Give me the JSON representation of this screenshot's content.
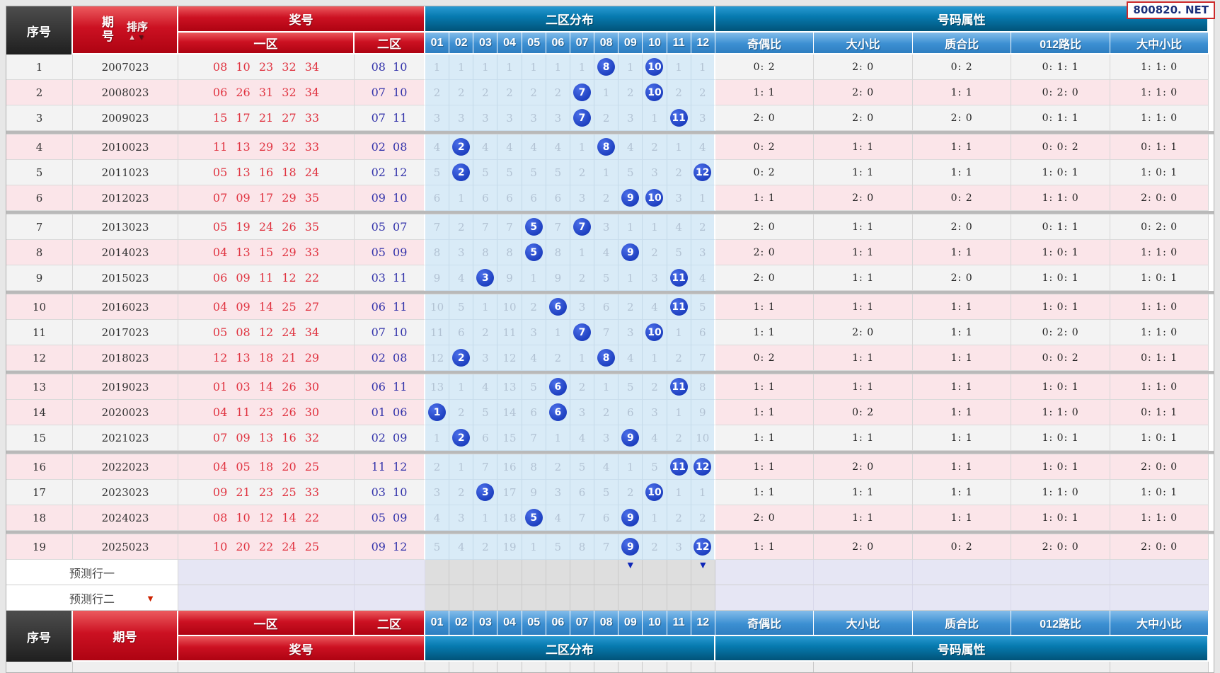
{
  "badge": "800820. NET",
  "colors": {
    "accent_red": "#cc1122",
    "header_dark": "#2b2b2b",
    "big_blue": "#077bb0",
    "column_blue": "#3c8fd2",
    "ball_blue": "#0c2db0",
    "zone1_text": "#e03340",
    "zone2_text": "#3232aa",
    "row_light": "#f3f3f3",
    "row_pink": "#fbe5e9",
    "dist_bg": "#d9ebf7",
    "prediction_lavender": "#e6e6f4"
  },
  "header": {
    "serial": "序号",
    "period_char1": "期",
    "period_char2": "号",
    "period": "期号",
    "sort_label": "排序",
    "sort_up": "▲",
    "sort_down": "▼",
    "prize": "奖号",
    "zone1": "一区",
    "zone2": "二区",
    "dist_title": "二区分布",
    "attr_title": "号码属性",
    "columns": [
      "01",
      "02",
      "03",
      "04",
      "05",
      "06",
      "07",
      "08",
      "09",
      "10",
      "11",
      "12"
    ],
    "attr_columns": [
      "奇偶比",
      "大小比",
      "质合比",
      "012路比",
      "大中小比"
    ]
  },
  "separator_after": [
    3,
    6,
    9,
    12,
    15,
    18
  ],
  "rows": [
    {
      "no": "1",
      "period": "2007023",
      "zone1": "08 10 23 32 34",
      "zone2": "08 10",
      "bg": "light",
      "dist": [
        "1",
        "1",
        "1",
        "1",
        "1",
        "1",
        "1",
        "8",
        "1",
        "10",
        "1",
        "1"
      ],
      "hits": [
        8,
        10
      ],
      "attrs": [
        "0: 2",
        "2: 0",
        "0: 2",
        "0: 1: 1",
        "1: 1: 0"
      ]
    },
    {
      "no": "2",
      "period": "2008023",
      "zone1": "06 26 31 32 34",
      "zone2": "07 10",
      "bg": "pink",
      "dist": [
        "2",
        "2",
        "2",
        "2",
        "2",
        "2",
        "7",
        "1",
        "2",
        "10",
        "2",
        "2"
      ],
      "hits": [
        7,
        10
      ],
      "attrs": [
        "1: 1",
        "2: 0",
        "1: 1",
        "0: 2: 0",
        "1: 1: 0"
      ]
    },
    {
      "no": "3",
      "period": "2009023",
      "zone1": "15 17 21 27 33",
      "zone2": "07 11",
      "bg": "light",
      "dist": [
        "3",
        "3",
        "3",
        "3",
        "3",
        "3",
        "7",
        "2",
        "3",
        "1",
        "11",
        "3"
      ],
      "hits": [
        7,
        11
      ],
      "attrs": [
        "2: 0",
        "2: 0",
        "2: 0",
        "0: 1: 1",
        "1: 1: 0"
      ]
    },
    {
      "no": "4",
      "period": "2010023",
      "zone1": "11 13 29 32 33",
      "zone2": "02 08",
      "bg": "pink",
      "dist": [
        "4",
        "2",
        "4",
        "4",
        "4",
        "4",
        "1",
        "8",
        "4",
        "2",
        "1",
        "4"
      ],
      "hits": [
        2,
        8
      ],
      "attrs": [
        "0: 2",
        "1: 1",
        "1: 1",
        "0: 0: 2",
        "0: 1: 1"
      ]
    },
    {
      "no": "5",
      "period": "2011023",
      "zone1": "05 13 16 18 24",
      "zone2": "02 12",
      "bg": "light",
      "dist": [
        "5",
        "2",
        "5",
        "5",
        "5",
        "5",
        "2",
        "1",
        "5",
        "3",
        "2",
        "12"
      ],
      "hits": [
        2,
        12
      ],
      "attrs": [
        "0: 2",
        "1: 1",
        "1: 1",
        "1: 0: 1",
        "1: 0: 1"
      ]
    },
    {
      "no": "6",
      "period": "2012023",
      "zone1": "07 09 17 29 35",
      "zone2": "09 10",
      "bg": "pink",
      "dist": [
        "6",
        "1",
        "6",
        "6",
        "6",
        "6",
        "3",
        "2",
        "9",
        "10",
        "3",
        "1"
      ],
      "hits": [
        9,
        10
      ],
      "attrs": [
        "1: 1",
        "2: 0",
        "0: 2",
        "1: 1: 0",
        "2: 0: 0"
      ]
    },
    {
      "no": "7",
      "period": "2013023",
      "zone1": "05 19 24 26 35",
      "zone2": "05 07",
      "bg": "light",
      "dist": [
        "7",
        "2",
        "7",
        "7",
        "5",
        "7",
        "7",
        "3",
        "1",
        "1",
        "4",
        "2"
      ],
      "hits": [
        5,
        7
      ],
      "attrs": [
        "2: 0",
        "1: 1",
        "2: 0",
        "0: 1: 1",
        "0: 2: 0"
      ]
    },
    {
      "no": "8",
      "period": "2014023",
      "zone1": "04 13 15 29 33",
      "zone2": "05 09",
      "bg": "pink",
      "dist": [
        "8",
        "3",
        "8",
        "8",
        "5",
        "8",
        "1",
        "4",
        "9",
        "2",
        "5",
        "3"
      ],
      "hits": [
        5,
        9
      ],
      "attrs": [
        "2: 0",
        "1: 1",
        "1: 1",
        "1: 0: 1",
        "1: 1: 0"
      ]
    },
    {
      "no": "9",
      "period": "2015023",
      "zone1": "06 09 11 12 22",
      "zone2": "03 11",
      "bg": "light",
      "dist": [
        "9",
        "4",
        "3",
        "9",
        "1",
        "9",
        "2",
        "5",
        "1",
        "3",
        "11",
        "4"
      ],
      "hits": [
        3,
        11
      ],
      "attrs": [
        "2: 0",
        "1: 1",
        "2: 0",
        "1: 0: 1",
        "1: 0: 1"
      ]
    },
    {
      "no": "10",
      "period": "2016023",
      "zone1": "04 09 14 25 27",
      "zone2": "06 11",
      "bg": "pink",
      "dist": [
        "10",
        "5",
        "1",
        "10",
        "2",
        "6",
        "3",
        "6",
        "2",
        "4",
        "11",
        "5"
      ],
      "hits": [
        6,
        11
      ],
      "attrs": [
        "1: 1",
        "1: 1",
        "1: 1",
        "1: 0: 1",
        "1: 1: 0"
      ]
    },
    {
      "no": "11",
      "period": "2017023",
      "zone1": "05 08 12 24 34",
      "zone2": "07 10",
      "bg": "light",
      "dist": [
        "11",
        "6",
        "2",
        "11",
        "3",
        "1",
        "7",
        "7",
        "3",
        "10",
        "1",
        "6"
      ],
      "hits": [
        7,
        10
      ],
      "attrs": [
        "1: 1",
        "2: 0",
        "1: 1",
        "0: 2: 0",
        "1: 1: 0"
      ]
    },
    {
      "no": "12",
      "period": "2018023",
      "zone1": "12 13 18 21 29",
      "zone2": "02 08",
      "bg": "pink",
      "dist": [
        "12",
        "2",
        "3",
        "12",
        "4",
        "2",
        "1",
        "8",
        "4",
        "1",
        "2",
        "7"
      ],
      "hits": [
        2,
        8
      ],
      "attrs": [
        "0: 2",
        "1: 1",
        "1: 1",
        "0: 0: 2",
        "0: 1: 1"
      ]
    },
    {
      "no": "13",
      "period": "2019023",
      "zone1": "01 03 14 26 30",
      "zone2": "06 11",
      "bg": "pink",
      "dist": [
        "13",
        "1",
        "4",
        "13",
        "5",
        "6",
        "2",
        "1",
        "5",
        "2",
        "11",
        "8"
      ],
      "hits": [
        6,
        11
      ],
      "attrs": [
        "1: 1",
        "1: 1",
        "1: 1",
        "1: 0: 1",
        "1: 1: 0"
      ]
    },
    {
      "no": "14",
      "period": "2020023",
      "zone1": "04 11 23 26 30",
      "zone2": "01 06",
      "bg": "pink",
      "dist": [
        "1",
        "2",
        "5",
        "14",
        "6",
        "6",
        "3",
        "2",
        "6",
        "3",
        "1",
        "9"
      ],
      "hits": [
        1,
        6
      ],
      "attrs": [
        "1: 1",
        "0: 2",
        "1: 1",
        "1: 1: 0",
        "0: 1: 1"
      ]
    },
    {
      "no": "15",
      "period": "2021023",
      "zone1": "07 09 13 16 32",
      "zone2": "02 09",
      "bg": "light",
      "dist": [
        "1",
        "2",
        "6",
        "15",
        "7",
        "1",
        "4",
        "3",
        "9",
        "4",
        "2",
        "10"
      ],
      "hits": [
        2,
        9
      ],
      "attrs": [
        "1: 1",
        "1: 1",
        "1: 1",
        "1: 0: 1",
        "1: 0: 1"
      ]
    },
    {
      "no": "16",
      "period": "2022023",
      "zone1": "04 05 18 20 25",
      "zone2": "11 12",
      "bg": "pink",
      "dist": [
        "2",
        "1",
        "7",
        "16",
        "8",
        "2",
        "5",
        "4",
        "1",
        "5",
        "11",
        "12"
      ],
      "hits": [
        11,
        12
      ],
      "attrs": [
        "1: 1",
        "2: 0",
        "1: 1",
        "1: 0: 1",
        "2: 0: 0"
      ]
    },
    {
      "no": "17",
      "period": "2023023",
      "zone1": "09 21 23 25 33",
      "zone2": "03 10",
      "bg": "light",
      "dist": [
        "3",
        "2",
        "3",
        "17",
        "9",
        "3",
        "6",
        "5",
        "2",
        "10",
        "1",
        "1"
      ],
      "hits": [
        3,
        10
      ],
      "attrs": [
        "1: 1",
        "1: 1",
        "1: 1",
        "1: 1: 0",
        "1: 0: 1"
      ]
    },
    {
      "no": "18",
      "period": "2024023",
      "zone1": "08 10 12 14 22",
      "zone2": "05 09",
      "bg": "pink",
      "dist": [
        "4",
        "3",
        "1",
        "18",
        "5",
        "4",
        "7",
        "6",
        "9",
        "1",
        "2",
        "2"
      ],
      "hits": [
        5,
        9
      ],
      "attrs": [
        "2: 0",
        "1: 1",
        "1: 1",
        "1: 0: 1",
        "1: 1: 0"
      ]
    },
    {
      "no": "19",
      "period": "2025023",
      "zone1": "10 20 22 24 25",
      "zone2": "09 12",
      "bg": "pink",
      "dist": [
        "5",
        "4",
        "2",
        "19",
        "1",
        "5",
        "8",
        "7",
        "9",
        "2",
        "3",
        "12"
      ],
      "hits": [
        9,
        12
      ],
      "attrs": [
        "1: 1",
        "2: 0",
        "0: 2",
        "2: 0: 0",
        "2: 0: 0"
      ]
    }
  ],
  "predictions": [
    {
      "label": "预测行一",
      "blue_arrow_cols": [
        9,
        12
      ]
    },
    {
      "label": "预测行二",
      "red_arrow": "▼"
    }
  ],
  "pred_arrow_glyph": "▼"
}
